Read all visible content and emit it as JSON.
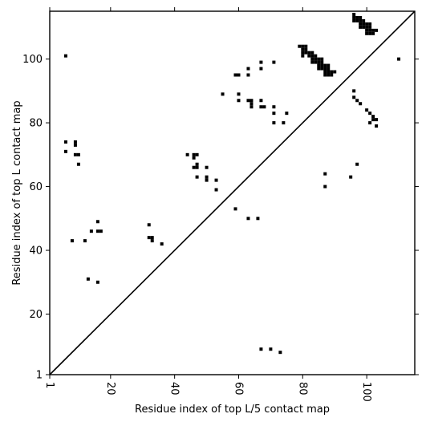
{
  "chart_data": {
    "type": "scatter",
    "title": "",
    "xlabel": "Residue index of top L/5 contact map",
    "ylabel": "Residue index of top L contact map",
    "xlim": [
      1,
      115
    ],
    "ylim": [
      1,
      115
    ],
    "xticks": [
      "1",
      "20",
      "40",
      "60",
      "80",
      "100"
    ],
    "xtick_values": [
      1,
      20,
      40,
      60,
      80,
      100
    ],
    "yticks": [
      "1",
      "20",
      "40",
      "60",
      "80",
      "100"
    ],
    "ytick_values": [
      1,
      20,
      40,
      60,
      80,
      100
    ],
    "grid": false,
    "legend": "none",
    "diagonal_line": true,
    "marker_color": "#000000",
    "series": [
      {
        "points": [
          [
            6,
            101
          ],
          [
            6,
            74
          ],
          [
            6,
            71
          ],
          [
            9,
            74
          ],
          [
            9,
            73
          ],
          [
            9,
            70
          ],
          [
            10,
            70
          ],
          [
            10,
            67
          ],
          [
            8,
            43
          ],
          [
            12,
            43
          ],
          [
            14,
            46
          ],
          [
            16,
            49
          ],
          [
            16,
            46
          ],
          [
            17,
            46
          ],
          [
            13,
            31
          ],
          [
            16,
            30
          ],
          [
            32,
            48
          ],
          [
            32,
            44
          ],
          [
            33,
            44
          ],
          [
            33,
            43
          ],
          [
            36,
            42
          ],
          [
            44,
            70
          ],
          [
            46,
            70
          ],
          [
            47,
            70
          ],
          [
            46,
            69
          ],
          [
            46,
            66
          ],
          [
            47,
            67
          ],
          [
            47,
            66
          ],
          [
            47,
            63
          ],
          [
            50,
            66
          ],
          [
            50,
            63
          ],
          [
            50,
            62
          ],
          [
            53,
            62
          ],
          [
            53,
            59
          ],
          [
            55,
            89
          ],
          [
            59,
            95
          ],
          [
            60,
            95
          ],
          [
            60,
            89
          ],
          [
            60,
            87
          ],
          [
            59,
            53
          ],
          [
            63,
            97
          ],
          [
            63,
            95
          ],
          [
            63,
            87
          ],
          [
            64,
            87
          ],
          [
            64,
            86
          ],
          [
            64,
            85
          ],
          [
            63,
            50
          ],
          [
            66,
            50
          ],
          [
            67,
            99
          ],
          [
            67,
            97
          ],
          [
            67,
            87
          ],
          [
            67,
            85
          ],
          [
            68,
            85
          ],
          [
            67,
            9
          ],
          [
            70,
            9
          ],
          [
            73,
            8
          ],
          [
            71,
            99
          ],
          [
            71,
            85
          ],
          [
            71,
            83
          ],
          [
            71,
            80
          ],
          [
            74,
            80
          ],
          [
            75,
            83
          ],
          [
            79,
            104
          ],
          [
            80,
            104
          ],
          [
            80,
            103
          ],
          [
            81,
            104
          ],
          [
            81,
            103
          ],
          [
            80,
            102
          ],
          [
            81,
            102
          ],
          [
            82,
            102
          ],
          [
            83,
            102
          ],
          [
            80,
            101
          ],
          [
            82,
            101
          ],
          [
            83,
            101
          ],
          [
            84,
            101
          ],
          [
            83,
            100
          ],
          [
            84,
            100
          ],
          [
            85,
            100
          ],
          [
            86,
            100
          ],
          [
            83,
            99
          ],
          [
            84,
            99
          ],
          [
            85,
            99
          ],
          [
            86,
            99
          ],
          [
            85,
            98
          ],
          [
            86,
            98
          ],
          [
            87,
            98
          ],
          [
            88,
            98
          ],
          [
            85,
            97
          ],
          [
            86,
            97
          ],
          [
            87,
            97
          ],
          [
            88,
            97
          ],
          [
            87,
            96
          ],
          [
            88,
            96
          ],
          [
            89,
            96
          ],
          [
            90,
            96
          ],
          [
            87,
            95
          ],
          [
            88,
            95
          ],
          [
            89,
            95
          ],
          [
            87,
            64
          ],
          [
            87,
            60
          ],
          [
            96,
            114
          ],
          [
            96,
            113
          ],
          [
            97,
            113
          ],
          [
            98,
            113
          ],
          [
            96,
            112
          ],
          [
            97,
            112
          ],
          [
            98,
            112
          ],
          [
            99,
            112
          ],
          [
            98,
            111
          ],
          [
            99,
            111
          ],
          [
            100,
            111
          ],
          [
            101,
            111
          ],
          [
            98,
            110
          ],
          [
            99,
            110
          ],
          [
            100,
            110
          ],
          [
            101,
            110
          ],
          [
            100,
            109
          ],
          [
            101,
            109
          ],
          [
            102,
            109
          ],
          [
            103,
            109
          ],
          [
            100,
            108
          ],
          [
            101,
            108
          ],
          [
            102,
            108
          ],
          [
            110,
            100
          ],
          [
            96,
            90
          ],
          [
            96,
            88
          ],
          [
            97,
            87
          ],
          [
            98,
            86
          ],
          [
            100,
            84
          ],
          [
            101,
            83
          ],
          [
            102,
            82
          ],
          [
            102,
            81
          ],
          [
            103,
            81
          ],
          [
            101,
            80
          ],
          [
            103,
            79
          ],
          [
            95,
            63
          ],
          [
            97,
            67
          ]
        ]
      }
    ]
  }
}
